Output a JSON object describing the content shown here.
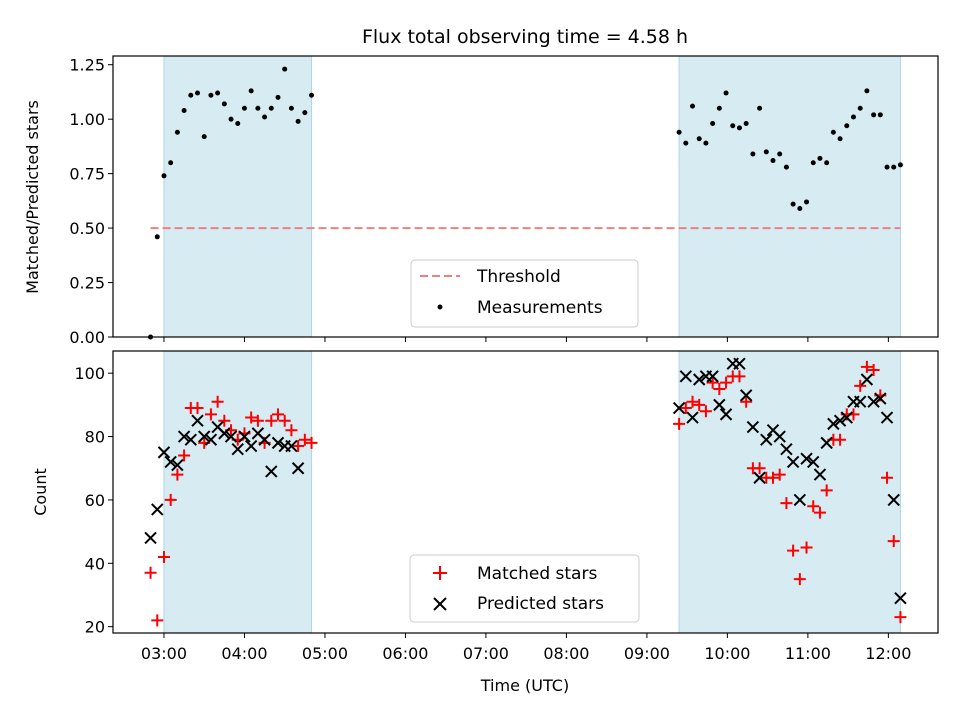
{
  "chart_data": [
    {
      "type": "scatter",
      "title": "Flux total observing time = 4.58 h",
      "xlabel": "",
      "ylabel": "Matched/Predicted stars",
      "ylim": [
        0,
        1.29
      ],
      "yticks": [
        "0.00",
        "0.25",
        "0.50",
        "0.75",
        "1.00",
        "1.25"
      ],
      "xlim": [
        "02:22",
        "12:37"
      ],
      "shaded_ranges": [
        [
          "03:00",
          "04:50"
        ],
        [
          "09:24",
          "12:09"
        ]
      ],
      "shade_color": "#add8e6",
      "threshold": {
        "name": "Threshold",
        "value": 0.5,
        "x_range": [
          "02:50",
          "12:09"
        ],
        "color": "#f08080"
      },
      "legend": {
        "placement": "lower-center",
        "entries": [
          "Threshold",
          "Measurements"
        ]
      },
      "series": [
        {
          "name": "Measurements",
          "color": "#000000",
          "marker": "dot",
          "points": [
            [
              "02:50",
              0.0
            ],
            [
              "02:55",
              0.46
            ],
            [
              "03:00",
              0.74
            ],
            [
              "03:05",
              0.8
            ],
            [
              "03:10",
              0.94
            ],
            [
              "03:15",
              1.04
            ],
            [
              "03:20",
              1.11
            ],
            [
              "03:25",
              1.12
            ],
            [
              "03:30",
              0.92
            ],
            [
              "03:35",
              1.11
            ],
            [
              "03:40",
              1.12
            ],
            [
              "03:45",
              1.07
            ],
            [
              "03:50",
              1.0
            ],
            [
              "03:55",
              0.98
            ],
            [
              "04:00",
              1.05
            ],
            [
              "04:05",
              1.13
            ],
            [
              "04:10",
              1.05
            ],
            [
              "04:15",
              1.01
            ],
            [
              "04:20",
              1.05
            ],
            [
              "04:25",
              1.1
            ],
            [
              "04:30",
              1.23
            ],
            [
              "04:35",
              1.05
            ],
            [
              "04:40",
              0.99
            ],
            [
              "04:45",
              1.03
            ],
            [
              "04:50",
              1.11
            ],
            [
              "09:24",
              0.94
            ],
            [
              "09:29",
              0.89
            ],
            [
              "09:34",
              1.06
            ],
            [
              "09:39",
              0.91
            ],
            [
              "09:44",
              0.89
            ],
            [
              "09:49",
              0.98
            ],
            [
              "09:54",
              1.05
            ],
            [
              "09:59",
              1.12
            ],
            [
              "10:04",
              0.97
            ],
            [
              "10:09",
              0.96
            ],
            [
              "10:14",
              0.98
            ],
            [
              "10:19",
              0.84
            ],
            [
              "10:24",
              1.05
            ],
            [
              "10:29",
              0.85
            ],
            [
              "10:34",
              0.81
            ],
            [
              "10:39",
              0.84
            ],
            [
              "10:44",
              0.78
            ],
            [
              "10:49",
              0.61
            ],
            [
              "10:54",
              0.59
            ],
            [
              "10:59",
              0.62
            ],
            [
              "11:04",
              0.8
            ],
            [
              "11:09",
              0.82
            ],
            [
              "11:14",
              0.8
            ],
            [
              "11:19",
              0.94
            ],
            [
              "11:24",
              0.91
            ],
            [
              "11:29",
              0.97
            ],
            [
              "11:34",
              1.01
            ],
            [
              "11:39",
              1.05
            ],
            [
              "11:44",
              1.13
            ],
            [
              "11:49",
              1.02
            ],
            [
              "11:54",
              1.02
            ],
            [
              "11:59",
              0.78
            ],
            [
              "12:04",
              0.78
            ],
            [
              "12:09",
              0.79
            ]
          ]
        }
      ]
    },
    {
      "type": "scatter",
      "title": "",
      "xlabel": "Time (UTC)",
      "ylabel": "Count",
      "ylim": [
        18,
        107
      ],
      "yticks": [
        "20",
        "40",
        "60",
        "80",
        "100"
      ],
      "xlim": [
        "02:22",
        "12:37"
      ],
      "xticks": [
        "03:00",
        "04:00",
        "05:00",
        "06:00",
        "07:00",
        "08:00",
        "09:00",
        "10:00",
        "11:00",
        "12:00"
      ],
      "shaded_ranges": [
        [
          "03:00",
          "04:50"
        ],
        [
          "09:24",
          "12:09"
        ]
      ],
      "shade_color": "#add8e6",
      "legend": {
        "placement": "lower-center",
        "entries": [
          "Matched stars",
          "Predicted stars"
        ]
      },
      "series": [
        {
          "name": "Matched stars",
          "color": "#ff0000",
          "marker": "plus",
          "points": [
            [
              "02:50",
              37
            ],
            [
              "02:55",
              22
            ],
            [
              "03:00",
              42
            ],
            [
              "03:05",
              60
            ],
            [
              "03:10",
              68
            ],
            [
              "03:15",
              74
            ],
            [
              "03:20",
              89
            ],
            [
              "03:25",
              89
            ],
            [
              "03:30",
              78
            ],
            [
              "03:35",
              87
            ],
            [
              "03:40",
              91
            ],
            [
              "03:45",
              85
            ],
            [
              "03:50",
              82
            ],
            [
              "03:55",
              79
            ],
            [
              "04:00",
              81
            ],
            [
              "04:05",
              86
            ],
            [
              "04:10",
              85
            ],
            [
              "04:15",
              78
            ],
            [
              "04:20",
              85
            ],
            [
              "04:25",
              87
            ],
            [
              "04:30",
              85
            ],
            [
              "04:35",
              82
            ],
            [
              "04:40",
              77
            ],
            [
              "04:45",
              79
            ],
            [
              "04:50",
              78
            ],
            [
              "09:24",
              84
            ],
            [
              "09:29",
              89
            ],
            [
              "09:34",
              91
            ],
            [
              "09:39",
              90
            ],
            [
              "09:44",
              88
            ],
            [
              "09:49",
              97
            ],
            [
              "09:54",
              95
            ],
            [
              "09:59",
              97
            ],
            [
              "10:04",
              99
            ],
            [
              "10:09",
              99
            ],
            [
              "10:14",
              91
            ],
            [
              "10:19",
              70
            ],
            [
              "10:24",
              70
            ],
            [
              "10:29",
              67
            ],
            [
              "10:34",
              67
            ],
            [
              "10:39",
              68
            ],
            [
              "10:44",
              59
            ],
            [
              "10:49",
              44
            ],
            [
              "10:54",
              35
            ],
            [
              "10:59",
              45
            ],
            [
              "11:04",
              58
            ],
            [
              "11:09",
              56
            ],
            [
              "11:14",
              63
            ],
            [
              "11:19",
              79
            ],
            [
              "11:24",
              79
            ],
            [
              "11:29",
              87
            ],
            [
              "11:34",
              87
            ],
            [
              "11:39",
              96
            ],
            [
              "11:44",
              102
            ],
            [
              "11:49",
              101
            ],
            [
              "11:54",
              93
            ],
            [
              "11:59",
              67
            ],
            [
              "12:04",
              47
            ],
            [
              "12:09",
              23
            ]
          ]
        },
        {
          "name": "Predicted stars",
          "color": "#000000",
          "marker": "x",
          "points": [
            [
              "02:50",
              48
            ],
            [
              "02:55",
              57
            ],
            [
              "03:00",
              75
            ],
            [
              "03:05",
              72
            ],
            [
              "03:10",
              71
            ],
            [
              "03:15",
              80
            ],
            [
              "03:20",
              79
            ],
            [
              "03:25",
              85
            ],
            [
              "03:30",
              80
            ],
            [
              "03:35",
              79
            ],
            [
              "03:40",
              83
            ],
            [
              "03:45",
              81
            ],
            [
              "03:50",
              80
            ],
            [
              "03:55",
              76
            ],
            [
              "04:00",
              80
            ],
            [
              "04:05",
              77
            ],
            [
              "04:10",
              81
            ],
            [
              "04:15",
              79
            ],
            [
              "04:20",
              69
            ],
            [
              "04:25",
              78
            ],
            [
              "04:30",
              77
            ],
            [
              "04:35",
              77
            ],
            [
              "04:40",
              70
            ],
            [
              "09:24",
              89
            ],
            [
              "09:29",
              99
            ],
            [
              "09:34",
              86
            ],
            [
              "09:39",
              98
            ],
            [
              "09:44",
              99
            ],
            [
              "09:49",
              99
            ],
            [
              "09:54",
              90
            ],
            [
              "09:59",
              87
            ],
            [
              "10:04",
              103
            ],
            [
              "10:09",
              103
            ],
            [
              "10:14",
              93
            ],
            [
              "10:19",
              83
            ],
            [
              "10:24",
              67
            ],
            [
              "10:29",
              79
            ],
            [
              "10:34",
              82
            ],
            [
              "10:39",
              80
            ],
            [
              "10:44",
              76
            ],
            [
              "10:49",
              72
            ],
            [
              "10:54",
              60
            ],
            [
              "10:59",
              73
            ],
            [
              "11:04",
              72
            ],
            [
              "11:09",
              68
            ],
            [
              "11:14",
              78
            ],
            [
              "11:19",
              84
            ],
            [
              "11:24",
              85
            ],
            [
              "11:29",
              86
            ],
            [
              "11:34",
              91
            ],
            [
              "11:39",
              91
            ],
            [
              "11:44",
              98
            ],
            [
              "11:49",
              91
            ],
            [
              "11:54",
              92
            ],
            [
              "11:59",
              86
            ],
            [
              "12:04",
              60
            ],
            [
              "12:09",
              29
            ]
          ]
        }
      ]
    }
  ]
}
